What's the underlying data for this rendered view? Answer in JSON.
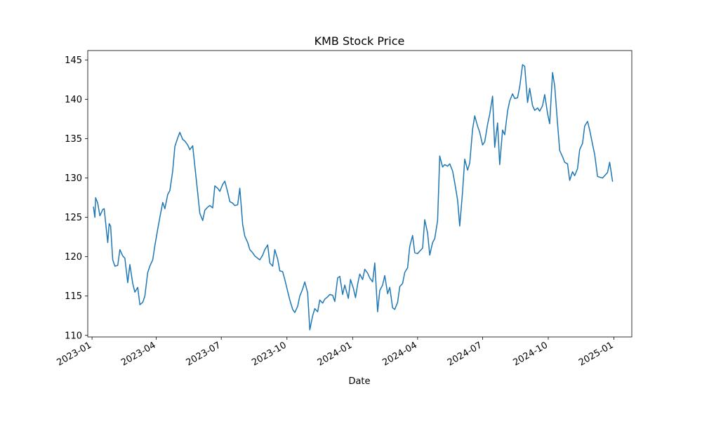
{
  "chart_data": {
    "type": "line",
    "title": "KMB Stock Price",
    "xlabel": "Date",
    "ylabel": "",
    "x_axis_type": "date",
    "xlim": [
      "2022-12-26",
      "2025-01-26"
    ],
    "ylim": [
      109.8,
      146.2
    ],
    "x_ticks": [
      "2023-01-01",
      "2023-04-01",
      "2023-07-01",
      "2023-10-01",
      "2024-01-01",
      "2024-04-01",
      "2024-07-01",
      "2024-10-01",
      "2025-01-01"
    ],
    "x_tick_labels": [
      "2023-01",
      "2023-04",
      "2023-07",
      "2023-10",
      "2024-01",
      "2024-04",
      "2024-07",
      "2024-10",
      "2025-01"
    ],
    "y_ticks": [
      110,
      115,
      120,
      125,
      130,
      135,
      140,
      145
    ],
    "grid": false,
    "legend": "none",
    "line_color": "#1f77b4",
    "series": [
      {
        "x": [
          "2023-01-03",
          "2023-01-05",
          "2023-01-06",
          "2023-01-09",
          "2023-01-12",
          "2023-01-16",
          "2023-01-18",
          "2023-01-23",
          "2023-01-25",
          "2023-01-27",
          "2023-01-30",
          "2023-02-02",
          "2023-02-06",
          "2023-02-09",
          "2023-02-13",
          "2023-02-16",
          "2023-02-20",
          "2023-02-23",
          "2023-02-27",
          "2023-03-02",
          "2023-03-06",
          "2023-03-09",
          "2023-03-13",
          "2023-03-16",
          "2023-03-20",
          "2023-03-23",
          "2023-03-27",
          "2023-03-30",
          "2023-04-03",
          "2023-04-06",
          "2023-04-10",
          "2023-04-13",
          "2023-04-17",
          "2023-04-20",
          "2023-04-24",
          "2023-04-27",
          "2023-05-01",
          "2023-05-04",
          "2023-05-08",
          "2023-05-11",
          "2023-05-15",
          "2023-05-18",
          "2023-05-22",
          "2023-05-25",
          "2023-05-29",
          "2023-06-01",
          "2023-06-05",
          "2023-06-08",
          "2023-06-12",
          "2023-06-15",
          "2023-06-19",
          "2023-06-22",
          "2023-06-26",
          "2023-06-29",
          "2023-07-03",
          "2023-07-06",
          "2023-07-10",
          "2023-07-13",
          "2023-07-17",
          "2023-07-20",
          "2023-07-24",
          "2023-07-27",
          "2023-07-31",
          "2023-08-03",
          "2023-08-07",
          "2023-08-10",
          "2023-08-14",
          "2023-08-17",
          "2023-08-21",
          "2023-08-24",
          "2023-08-28",
          "2023-08-31",
          "2023-09-04",
          "2023-09-07",
          "2023-09-11",
          "2023-09-14",
          "2023-09-18",
          "2023-09-21",
          "2023-09-25",
          "2023-09-28",
          "2023-10-02",
          "2023-10-05",
          "2023-10-09",
          "2023-10-12",
          "2023-10-16",
          "2023-10-19",
          "2023-10-23",
          "2023-10-26",
          "2023-10-30",
          "2023-11-02",
          "2023-11-06",
          "2023-11-09",
          "2023-11-13",
          "2023-11-16",
          "2023-11-20",
          "2023-11-23",
          "2023-11-27",
          "2023-11-30",
          "2023-12-04",
          "2023-12-07",
          "2023-12-11",
          "2023-12-14",
          "2023-12-18",
          "2023-12-21",
          "2023-12-26",
          "2023-12-29",
          "2024-01-02",
          "2024-01-05",
          "2024-01-08",
          "2024-01-11",
          "2024-01-15",
          "2024-01-18",
          "2024-01-22",
          "2024-01-25",
          "2024-01-29",
          "2024-02-01",
          "2024-02-05",
          "2024-02-08",
          "2024-02-12",
          "2024-02-15",
          "2024-02-19",
          "2024-02-22",
          "2024-02-26",
          "2024-02-29",
          "2024-03-04",
          "2024-03-07",
          "2024-03-11",
          "2024-03-14",
          "2024-03-18",
          "2024-03-21",
          "2024-03-25",
          "2024-03-28",
          "2024-04-01",
          "2024-04-04",
          "2024-04-08",
          "2024-04-11",
          "2024-04-15",
          "2024-04-18",
          "2024-04-22",
          "2024-04-25",
          "2024-04-29",
          "2024-05-02",
          "2024-05-06",
          "2024-05-09",
          "2024-05-13",
          "2024-05-16",
          "2024-05-20",
          "2024-05-23",
          "2024-05-27",
          "2024-05-30",
          "2024-06-03",
          "2024-06-06",
          "2024-06-10",
          "2024-06-13",
          "2024-06-17",
          "2024-06-20",
          "2024-06-24",
          "2024-06-27",
          "2024-07-01",
          "2024-07-04",
          "2024-07-08",
          "2024-07-11",
          "2024-07-15",
          "2024-07-18",
          "2024-07-22",
          "2024-07-25",
          "2024-07-29",
          "2024-08-01",
          "2024-08-05",
          "2024-08-08",
          "2024-08-12",
          "2024-08-15",
          "2024-08-19",
          "2024-08-22",
          "2024-08-26",
          "2024-08-29",
          "2024-09-02",
          "2024-09-05",
          "2024-09-09",
          "2024-09-12",
          "2024-09-16",
          "2024-09-19",
          "2024-09-23",
          "2024-09-26",
          "2024-09-30",
          "2024-10-03",
          "2024-10-07",
          "2024-10-10",
          "2024-10-14",
          "2024-10-17",
          "2024-10-21",
          "2024-10-24",
          "2024-10-28",
          "2024-10-31",
          "2024-11-04",
          "2024-11-07",
          "2024-11-11",
          "2024-11-14",
          "2024-11-18",
          "2024-11-21",
          "2024-11-25",
          "2024-11-28",
          "2024-12-02",
          "2024-12-05",
          "2024-12-09",
          "2024-12-12",
          "2024-12-16",
          "2024-12-19",
          "2024-12-23",
          "2024-12-26",
          "2024-12-30"
        ],
        "y": [
          126.3,
          125.0,
          127.5,
          126.8,
          125.2,
          126.0,
          126.1,
          121.8,
          124.2,
          123.9,
          119.6,
          118.8,
          118.9,
          120.9,
          120.1,
          119.8,
          116.7,
          119.0,
          116.6,
          115.5,
          116.1,
          113.9,
          114.2,
          115.0,
          118.0,
          118.8,
          119.6,
          121.4,
          123.5,
          125.0,
          126.9,
          126.1,
          127.9,
          128.4,
          130.9,
          134.0,
          135.1,
          135.8,
          134.9,
          134.7,
          134.2,
          133.6,
          134.1,
          131.5,
          128.1,
          125.5,
          124.6,
          125.9,
          126.3,
          126.5,
          126.2,
          129.0,
          128.7,
          128.3,
          129.2,
          129.6,
          128.2,
          127.0,
          126.8,
          126.5,
          126.6,
          128.7,
          124.1,
          122.6,
          121.8,
          120.9,
          120.5,
          120.1,
          119.8,
          119.6,
          120.2,
          120.9,
          121.5,
          119.2,
          118.8,
          120.9,
          119.7,
          118.2,
          118.1,
          117.1,
          115.6,
          114.5,
          113.3,
          112.9,
          113.7,
          115.0,
          115.9,
          116.8,
          115.4,
          110.7,
          112.5,
          113.4,
          113.0,
          114.5,
          114.1,
          114.6,
          114.9,
          115.2,
          115.1,
          114.3,
          117.3,
          117.5,
          115.2,
          116.4,
          114.7,
          117.1,
          116.0,
          114.8,
          116.5,
          117.8,
          117.1,
          118.4,
          117.9,
          117.3,
          116.8,
          119.2,
          113.0,
          115.7,
          116.4,
          117.6,
          115.3,
          116.1,
          113.5,
          113.3,
          114.2,
          116.2,
          116.6,
          118.0,
          118.6,
          121.3,
          122.7,
          120.5,
          120.4,
          120.7,
          121.1,
          124.7,
          123.0,
          120.2,
          121.8,
          122.3,
          124.6,
          132.8,
          131.4,
          131.7,
          131.5,
          131.8,
          130.9,
          129.4,
          127.2,
          123.9,
          128.3,
          132.4,
          131.0,
          131.9,
          136.2,
          137.9,
          136.6,
          135.8,
          134.2,
          134.6,
          136.8,
          138.1,
          140.4,
          133.9,
          137.0,
          131.7,
          136.1,
          135.5,
          138.5,
          139.8,
          140.7,
          140.1,
          140.2,
          141.6,
          144.4,
          144.2,
          139.6,
          141.4,
          139.2,
          138.6,
          138.9,
          138.5,
          139.2,
          140.6,
          138.2,
          136.9,
          143.4,
          141.7,
          136.9,
          133.5,
          132.7,
          132.0,
          131.8,
          129.7,
          130.8,
          130.3,
          131.2,
          133.6,
          134.4,
          136.6,
          137.2,
          136.1,
          134.3,
          133.0,
          130.2,
          130.1,
          130.0,
          130.3,
          130.7,
          132.0,
          129.6
        ]
      }
    ]
  }
}
